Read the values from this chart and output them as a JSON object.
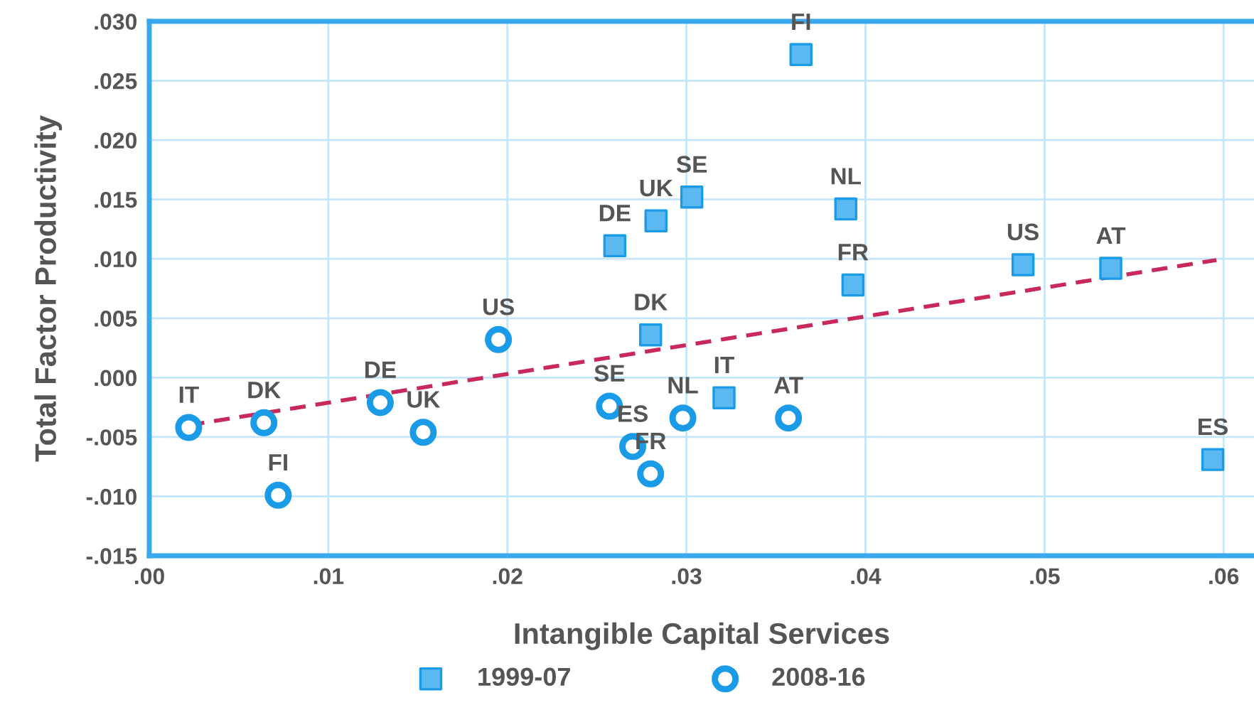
{
  "chart_data": {
    "type": "scatter",
    "xlabel": "Intangible Capital Services",
    "ylabel": "Total Factor Productivity",
    "xlim": [
      0,
      0.0617
    ],
    "xticks": [
      {
        "value": 0,
        "label": ".00"
      },
      {
        "value": 0.01,
        "label": ".01"
      },
      {
        "value": 0.02,
        "label": ".02"
      },
      {
        "value": 0.03,
        "label": ".03"
      },
      {
        "value": 0.04,
        "label": ".04"
      },
      {
        "value": 0.05,
        "label": ".05"
      },
      {
        "value": 0.06,
        "label": ".06"
      }
    ],
    "ylim": [
      -0.015,
      0.03
    ],
    "yticks": [
      {
        "value": -0.015,
        "label": "-.015"
      },
      {
        "value": -0.01,
        "label": "-.010"
      },
      {
        "value": -0.005,
        "label": "-.005"
      },
      {
        "value": 0,
        "label": ".000"
      },
      {
        "value": 0.005,
        "label": ".005"
      },
      {
        "value": 0.01,
        "label": ".010"
      },
      {
        "value": 0.015,
        "label": ".015"
      },
      {
        "value": 0.02,
        "label": ".020"
      },
      {
        "value": 0.025,
        "label": ".025"
      },
      {
        "value": 0.03,
        "label": ".030"
      }
    ],
    "grid": true,
    "legend": "bottom",
    "series": [
      {
        "name": "1999-07",
        "marker": "square",
        "color": "#5bb8f0",
        "x": [
          0.0364,
          0.0303,
          0.0283,
          0.026,
          0.0389,
          0.0488,
          0.0537,
          0.0393,
          0.028,
          0.0321,
          0.0594
        ],
        "values": [
          0.0272,
          0.0152,
          0.0132,
          0.0111,
          0.0142,
          0.0095,
          0.0092,
          0.0078,
          0.0036,
          -0.0017,
          -0.0069
        ]
      },
      {
        "name": "2008-16",
        "marker": "circle",
        "color": "#1a9be8",
        "x": [
          0.0022,
          0.0064,
          0.0072,
          0.0129,
          0.0153,
          0.0195,
          0.0257,
          0.027,
          0.028,
          0.0298,
          0.0357
        ],
        "values": [
          -0.0042,
          -0.0038,
          -0.0099,
          -0.0021,
          -0.0046,
          0.0032,
          -0.0024,
          -0.0058,
          -0.0081,
          -0.0034,
          -0.0034
        ]
      },
      {
        "type": "line",
        "line_style": "dashed",
        "marker": "none",
        "color": "#c8285a",
        "x": [
          0.0022,
          0.0596
        ],
        "values": [
          -0.004,
          0.0099
        ]
      }
    ],
    "annotations": [
      {
        "text": "FI",
        "x": 0.0364,
        "y": 0.0272
      },
      {
        "text": "SE",
        "x": 0.0303,
        "y": 0.0152
      },
      {
        "text": "UK",
        "x": 0.0283,
        "y": 0.0132
      },
      {
        "text": "DE",
        "x": 0.026,
        "y": 0.0111
      },
      {
        "text": "NL",
        "x": 0.0389,
        "y": 0.0142
      },
      {
        "text": "US",
        "x": 0.0488,
        "y": 0.0095
      },
      {
        "text": "AT",
        "x": 0.0537,
        "y": 0.0092
      },
      {
        "text": "FR",
        "x": 0.0393,
        "y": 0.0078
      },
      {
        "text": "DK",
        "x": 0.028,
        "y": 0.0036
      },
      {
        "text": "IT",
        "x": 0.0321,
        "y": -0.0017
      },
      {
        "text": "ES",
        "x": 0.0594,
        "y": -0.0069
      },
      {
        "text": "IT",
        "x": 0.0022,
        "y": -0.0042
      },
      {
        "text": "DK",
        "x": 0.0064,
        "y": -0.0038
      },
      {
        "text": "FI",
        "x": 0.0072,
        "y": -0.0099
      },
      {
        "text": "DE",
        "x": 0.0129,
        "y": -0.0021
      },
      {
        "text": "UK",
        "x": 0.0153,
        "y": -0.0046
      },
      {
        "text": "US",
        "x": 0.0195,
        "y": 0.0032
      },
      {
        "text": "SE",
        "x": 0.0257,
        "y": -0.0024
      },
      {
        "text": "ES",
        "x": 0.027,
        "y": -0.0058
      },
      {
        "text": "FR",
        "x": 0.028,
        "y": -0.0081
      },
      {
        "text": "NL",
        "x": 0.0298,
        "y": -0.0034
      },
      {
        "text": "AT",
        "x": 0.0357,
        "y": -0.0034
      }
    ]
  }
}
